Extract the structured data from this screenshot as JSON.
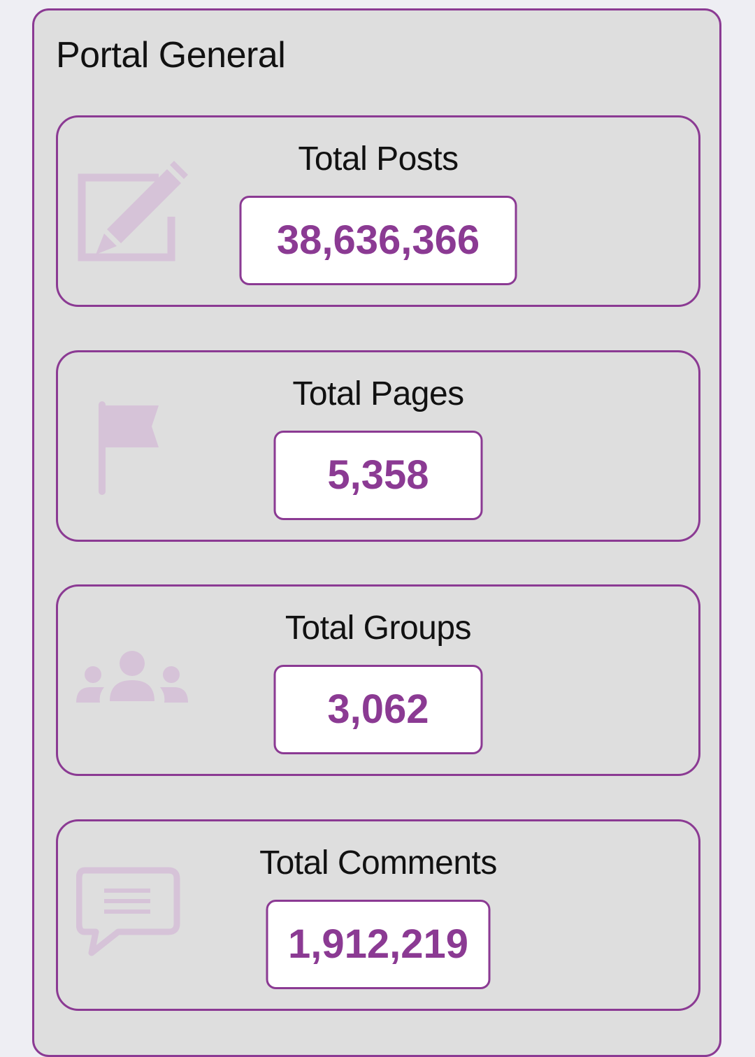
{
  "panel": {
    "title": "Portal General"
  },
  "colors": {
    "accent": "#8b3a93",
    "icon_fill": "#d6c3d8",
    "panel_bg": "#dedede",
    "page_bg": "#eeeef3"
  },
  "stats": [
    {
      "label": "Total Posts",
      "value": "38,636,366",
      "icon": "edit-icon"
    },
    {
      "label": "Total Pages",
      "value": "5,358",
      "icon": "flag-icon"
    },
    {
      "label": "Total Groups",
      "value": "3,062",
      "icon": "users-icon"
    },
    {
      "label": "Total Comments",
      "value": "1,912,219",
      "icon": "comment-icon"
    }
  ]
}
